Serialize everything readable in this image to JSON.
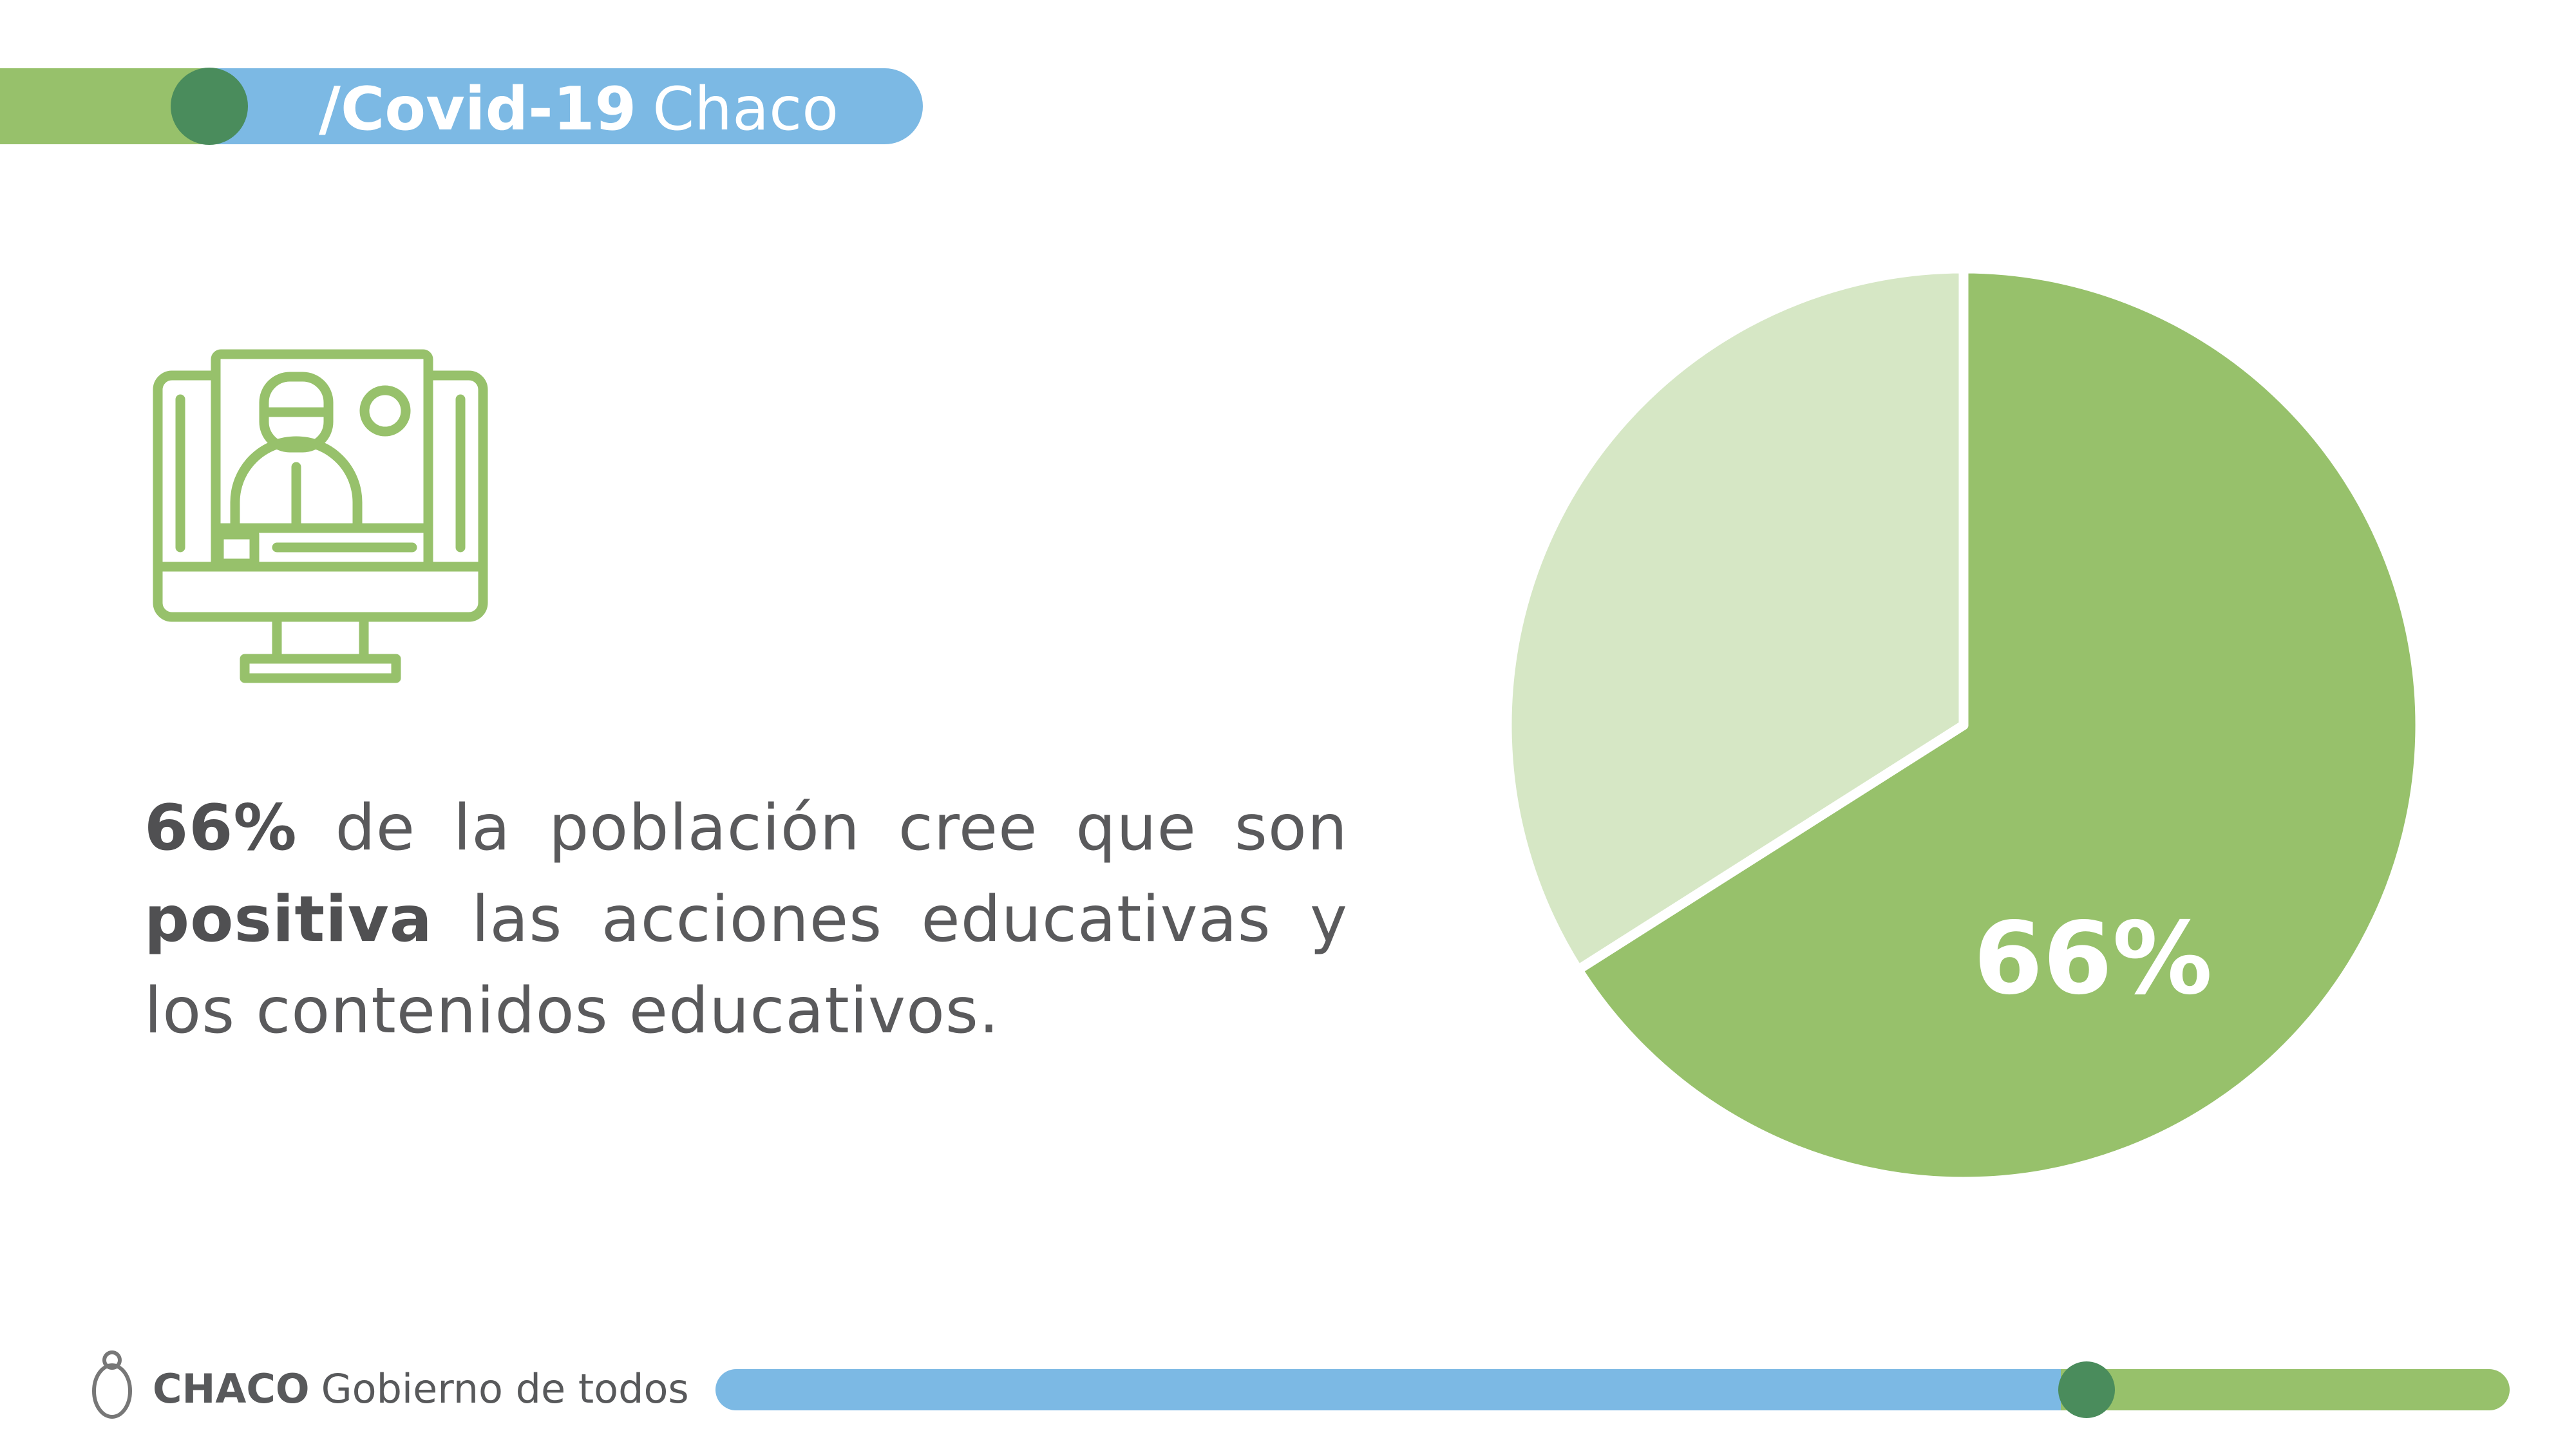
{
  "header": {
    "title_bold": "/Covid-19",
    "title_regular": "Chaco"
  },
  "text": {
    "parts": [
      {
        "text": "66%",
        "bold": true
      },
      {
        "text": " de la población cree que son ",
        "bold": false
      },
      {
        "text": "positiva",
        "bold": true
      },
      {
        "text": " las acciones educativas y los contenidos educativos.",
        "bold": false
      }
    ]
  },
  "footer": {
    "brand": "CHACO",
    "tagline": "Gobierno de todos"
  },
  "chart_data": {
    "type": "pie",
    "values": [
      66,
      34
    ],
    "value_labels": [
      "66%",
      null
    ],
    "colors": [
      "#97c16b",
      "#d6e7c5"
    ]
  }
}
